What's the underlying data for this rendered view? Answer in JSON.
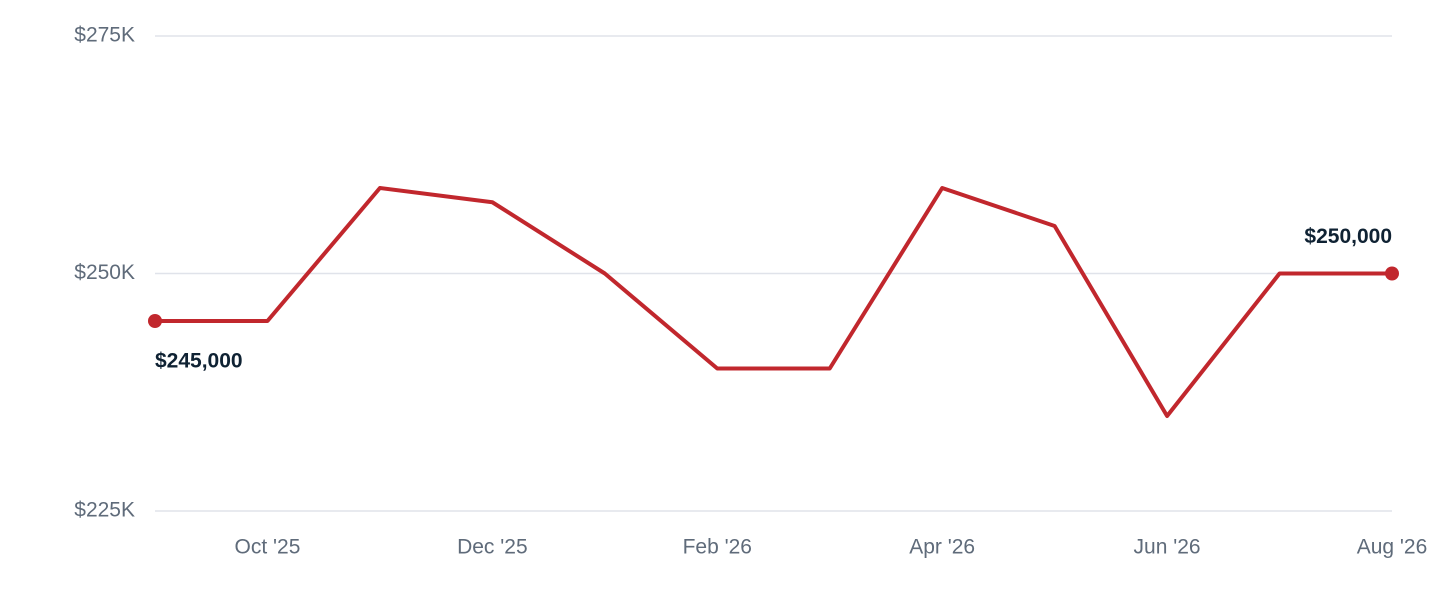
{
  "chart_data": {
    "type": "line",
    "categories": [
      null,
      "Oct '25",
      null,
      "Dec '25",
      null,
      "Feb '26",
      null,
      "Apr '26",
      null,
      "Jun '26",
      null,
      "Aug '26"
    ],
    "values": [
      245000,
      245000,
      259000,
      257500,
      250000,
      240000,
      240000,
      259000,
      255000,
      235000,
      250000,
      250000
    ],
    "value_labels": [
      "$245,000",
      null,
      null,
      null,
      null,
      null,
      null,
      null,
      null,
      null,
      null,
      "$250,000"
    ],
    "color": "#c1272d",
    "ylim": [
      225000,
      275000
    ],
    "yticks": [
      {
        "value": 225000,
        "label": "$225K"
      },
      {
        "value": 250000,
        "label": "$250K"
      },
      {
        "value": 275000,
        "label": "$275K"
      }
    ],
    "grid": true
  }
}
